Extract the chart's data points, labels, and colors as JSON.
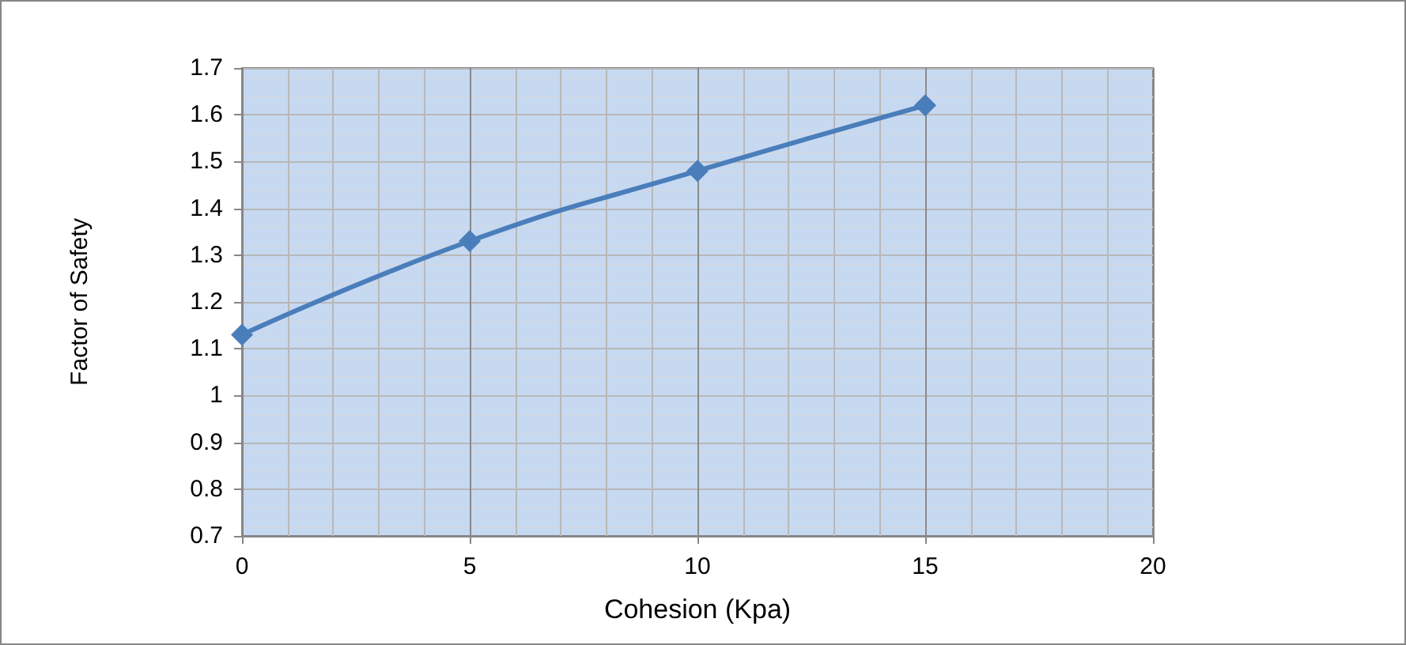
{
  "chart_data": {
    "type": "line",
    "xlabel": "Cohesion (Kpa)",
    "ylabel": "Factor of Safety",
    "x": [
      0,
      5,
      10,
      15
    ],
    "series": [
      {
        "color": "#4a7ebb",
        "values": [
          1.13,
          1.33,
          1.48,
          1.62
        ]
      }
    ],
    "xlim": [
      0,
      20
    ],
    "xticks": [
      0,
      5,
      10,
      15,
      20
    ],
    "ylim": [
      0.7,
      1.7
    ],
    "yticks": [
      0.7,
      0.8,
      0.9,
      1,
      1.1,
      1.2,
      1.3,
      1.4,
      1.5,
      1.6,
      1.7
    ],
    "grid": true,
    "marker": "diamond",
    "line_style": "solid"
  }
}
